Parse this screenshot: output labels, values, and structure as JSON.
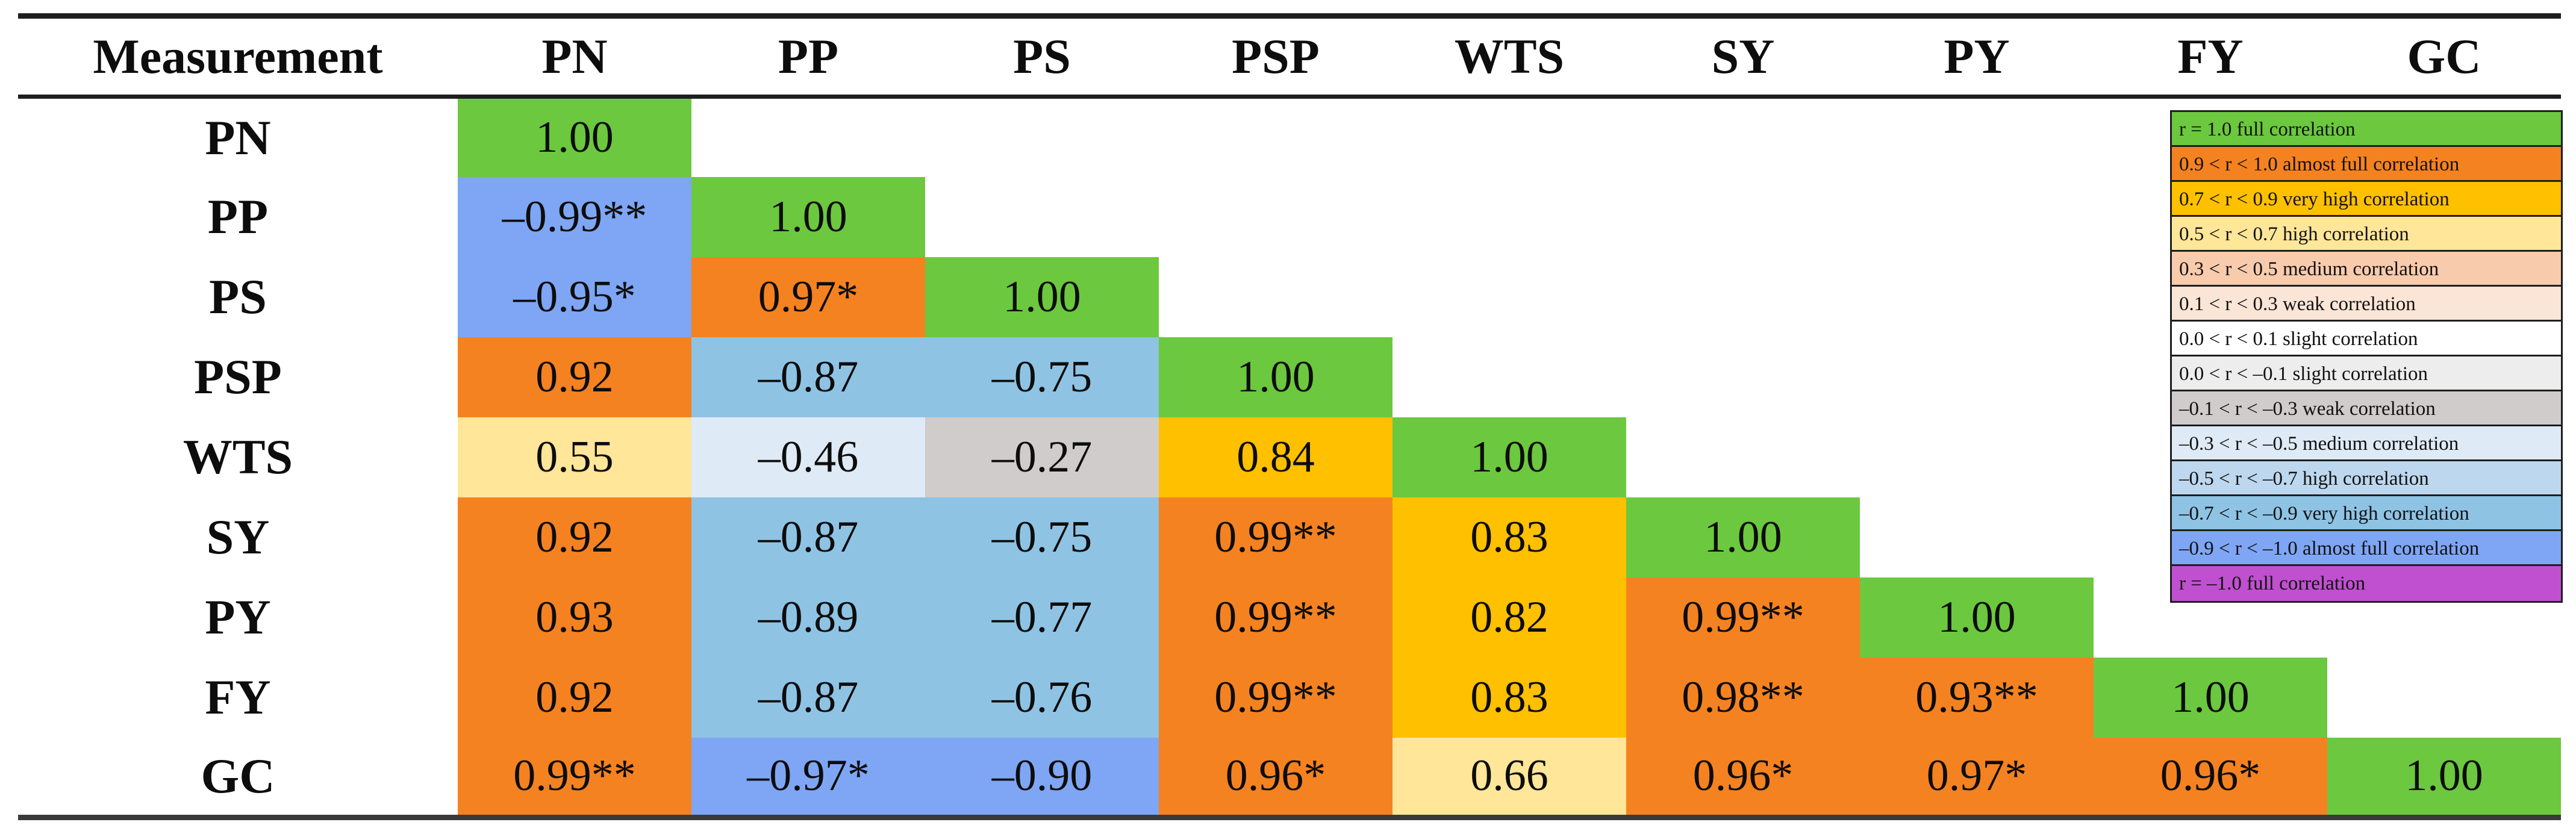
{
  "table": {
    "corner_label": "Measurement",
    "columns": [
      "PN",
      "PP",
      "PS",
      "PSP",
      "WTS",
      "SY",
      "PY",
      "FY",
      "GC"
    ],
    "rows": [
      {
        "label": "PN",
        "cells": [
          {
            "text": "1.00",
            "band": "full_pos"
          }
        ]
      },
      {
        "label": "PP",
        "cells": [
          {
            "text": "–0.99**",
            "band": "almost_full_neg"
          },
          {
            "text": "1.00",
            "band": "full_pos"
          }
        ]
      },
      {
        "label": "PS",
        "cells": [
          {
            "text": "–0.95*",
            "band": "almost_full_neg"
          },
          {
            "text": "0.97*",
            "band": "almost_full_pos"
          },
          {
            "text": "1.00",
            "band": "full_pos"
          }
        ]
      },
      {
        "label": "PSP",
        "cells": [
          {
            "text": "0.92",
            "band": "almost_full_pos"
          },
          {
            "text": "–0.87",
            "band": "very_high_neg"
          },
          {
            "text": "–0.75",
            "band": "very_high_neg"
          },
          {
            "text": "1.00",
            "band": "full_pos"
          }
        ]
      },
      {
        "label": "WTS",
        "cells": [
          {
            "text": "0.55",
            "band": "high_pos"
          },
          {
            "text": "–0.46",
            "band": "medium_neg"
          },
          {
            "text": "–0.27",
            "band": "weak_neg"
          },
          {
            "text": "0.84",
            "band": "very_high_pos"
          },
          {
            "text": "1.00",
            "band": "full_pos"
          }
        ]
      },
      {
        "label": "SY",
        "cells": [
          {
            "text": "0.92",
            "band": "almost_full_pos"
          },
          {
            "text": "–0.87",
            "band": "very_high_neg"
          },
          {
            "text": "–0.75",
            "band": "very_high_neg"
          },
          {
            "text": "0.99**",
            "band": "almost_full_pos"
          },
          {
            "text": "0.83",
            "band": "very_high_pos"
          },
          {
            "text": "1.00",
            "band": "full_pos"
          }
        ]
      },
      {
        "label": "PY",
        "cells": [
          {
            "text": "0.93",
            "band": "almost_full_pos"
          },
          {
            "text": "–0.89",
            "band": "very_high_neg"
          },
          {
            "text": "–0.77",
            "band": "very_high_neg"
          },
          {
            "text": "0.99**",
            "band": "almost_full_pos"
          },
          {
            "text": "0.82",
            "band": "very_high_pos"
          },
          {
            "text": "0.99**",
            "band": "almost_full_pos"
          },
          {
            "text": "1.00",
            "band": "full_pos"
          }
        ]
      },
      {
        "label": "FY",
        "cells": [
          {
            "text": "0.92",
            "band": "almost_full_pos"
          },
          {
            "text": "–0.87",
            "band": "very_high_neg"
          },
          {
            "text": "–0.76",
            "band": "very_high_neg"
          },
          {
            "text": "0.99**",
            "band": "almost_full_pos"
          },
          {
            "text": "0.83",
            "band": "very_high_pos"
          },
          {
            "text": "0.98**",
            "band": "almost_full_pos"
          },
          {
            "text": "0.93**",
            "band": "almost_full_pos"
          },
          {
            "text": "1.00",
            "band": "full_pos"
          }
        ]
      },
      {
        "label": "GC",
        "cells": [
          {
            "text": "0.99**",
            "band": "almost_full_pos"
          },
          {
            "text": "–0.97*",
            "band": "almost_full_neg"
          },
          {
            "text": "–0.90",
            "band": "almost_full_neg"
          },
          {
            "text": "0.96*",
            "band": "almost_full_pos"
          },
          {
            "text": "0.66",
            "band": "high_pos"
          },
          {
            "text": "0.96*",
            "band": "almost_full_pos"
          },
          {
            "text": "0.97*",
            "band": "almost_full_pos"
          },
          {
            "text": "0.96*",
            "band": "almost_full_pos"
          },
          {
            "text": "1.00",
            "band": "full_pos"
          }
        ]
      }
    ]
  },
  "legend": {
    "items": [
      {
        "text": "r = 1.0 full correlation",
        "band": "full_pos"
      },
      {
        "text": "0.9 < r < 1.0 almost full correlation",
        "band": "almost_full_pos"
      },
      {
        "text": "0.7 < r < 0.9 very high correlation",
        "band": "very_high_pos"
      },
      {
        "text": "0.5 < r < 0.7 high correlation",
        "band": "high_pos"
      },
      {
        "text": "0.3 < r < 0.5 medium correlation",
        "band": "medium_pos"
      },
      {
        "text": "0.1 < r < 0.3 weak correlation",
        "band": "weak_pos"
      },
      {
        "text": "0.0 < r < 0.1 slight correlation",
        "band": "slight_pos"
      },
      {
        "text": "0.0 < r < –0.1 slight correlation",
        "band": "slight_neg"
      },
      {
        "text": "–0.1 < r < –0.3 weak correlation",
        "band": "weak_neg"
      },
      {
        "text": "–0.3 < r < –0.5 medium correlation",
        "band": "medium_neg"
      },
      {
        "text": "–0.5 < r < –0.7 high correlation",
        "band": "high_neg"
      },
      {
        "text": "–0.7 < r < –0.9 very high correlation",
        "band": "very_high_neg"
      },
      {
        "text": "–0.9 < r < –1.0 almost full correlation",
        "band": "almost_full_neg"
      },
      {
        "text": "r = –1.0 full correlation",
        "band": "full_neg"
      }
    ]
  },
  "colors": {
    "full_pos": "#6CC83E",
    "almost_full_pos": "#F58220",
    "very_high_pos": "#FFC000",
    "high_pos": "#FFE699",
    "medium_pos": "#F8CBAD",
    "weak_pos": "#FBE5D6",
    "slight_pos": "#FFFFFF",
    "slight_neg": "#EDEDED",
    "weak_neg": "#CFCCCB",
    "medium_neg": "#DEEAF6",
    "high_neg": "#BDD7EE",
    "very_high_neg": "#8FC3E4",
    "almost_full_neg": "#7EA6F4",
    "full_neg": "#C050D0",
    "empty": "#FFFFFF"
  },
  "chart_data": {
    "type": "heatmap",
    "title": "",
    "variables": [
      "PN",
      "PP",
      "PS",
      "PSP",
      "WTS",
      "SY",
      "PY",
      "FY",
      "GC"
    ],
    "corner_label": "Measurement",
    "triangle": "lower",
    "values_text": [
      [
        "1.00"
      ],
      [
        "–0.99**",
        "1.00"
      ],
      [
        "–0.95*",
        "0.97*",
        "1.00"
      ],
      [
        "0.92",
        "–0.87",
        "–0.75",
        "1.00"
      ],
      [
        "0.55",
        "–0.46",
        "–0.27",
        "0.84",
        "1.00"
      ],
      [
        "0.92",
        "–0.87",
        "–0.75",
        "0.99**",
        "0.83",
        "1.00"
      ],
      [
        "0.93",
        "–0.89",
        "–0.77",
        "0.99**",
        "0.82",
        "0.99**",
        "1.00"
      ],
      [
        "0.92",
        "–0.87",
        "–0.76",
        "0.99**",
        "0.83",
        "0.98**",
        "0.93**",
        "1.00"
      ],
      [
        "0.99**",
        "–0.97*",
        "–0.90",
        "0.96*",
        "0.66",
        "0.96*",
        "0.97*",
        "0.96*",
        "1.00"
      ]
    ],
    "values_numeric": [
      [
        1.0
      ],
      [
        -0.99,
        1.0
      ],
      [
        -0.95,
        0.97,
        1.0
      ],
      [
        0.92,
        -0.87,
        -0.75,
        1.0
      ],
      [
        0.55,
        -0.46,
        -0.27,
        0.84,
        1.0
      ],
      [
        0.92,
        -0.87,
        -0.75,
        0.99,
        0.83,
        1.0
      ],
      [
        0.93,
        -0.89,
        -0.77,
        0.99,
        0.82,
        0.99,
        1.0
      ],
      [
        0.92,
        -0.87,
        -0.76,
        0.99,
        0.83,
        0.98,
        0.93,
        1.0
      ],
      [
        0.99,
        -0.97,
        -0.9,
        0.96,
        0.66,
        0.96,
        0.97,
        0.96,
        1.0
      ]
    ],
    "legend_position": "top-right",
    "legend_entries": [
      "r = 1.0 full correlation",
      "0.9 < r < 1.0 almost full correlation",
      "0.7 < r < 0.9 very high correlation",
      "0.5 < r < 0.7 high correlation",
      "0.3 < r < 0.5 medium correlation",
      "0.1 < r < 0.3 weak correlation",
      "0.0 < r < 0.1 slight correlation",
      "0.0 < r < –0.1 slight correlation",
      "–0.1 < r < –0.3 weak correlation",
      "–0.3 < r < –0.5 medium correlation",
      "–0.5 < r < –0.7 high correlation",
      "–0.7 < r < –0.9 very high correlation",
      "–0.9 < r < –1.0 almost full correlation",
      "r = –1.0 full correlation"
    ]
  }
}
